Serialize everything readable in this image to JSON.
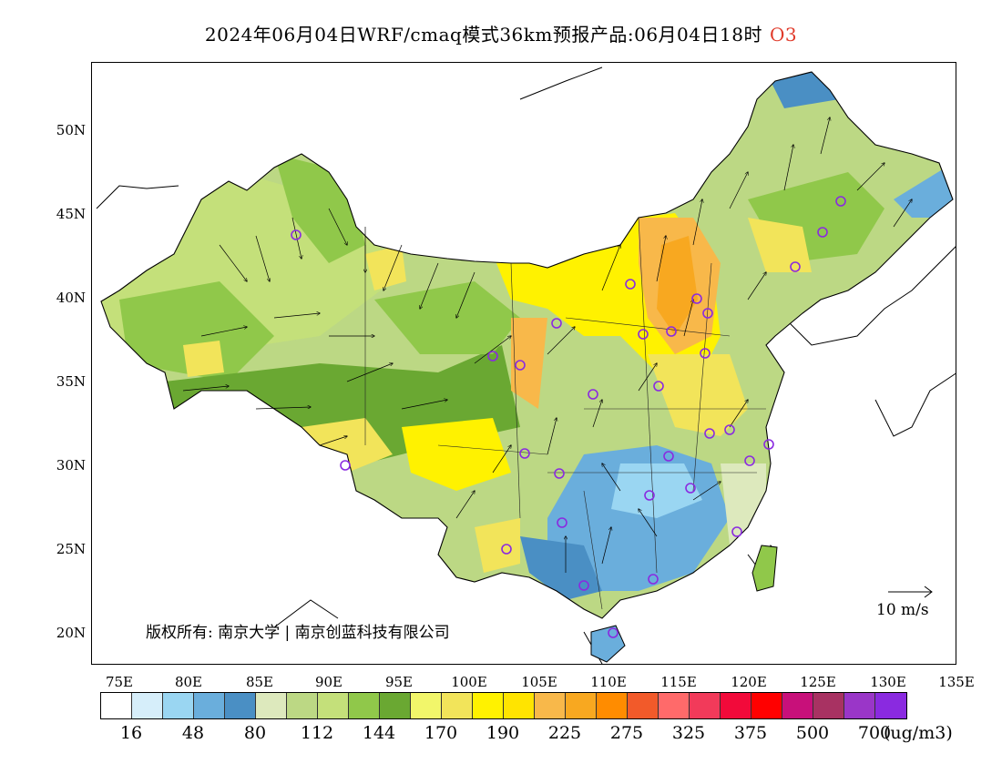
{
  "title": "2024年06月04日WRF/cmaq模式36km预报产品:06月04日18时",
  "species": "O3",
  "copyright": "版权所有: 南京大学 | 南京创蓝科技有限公司",
  "wind_scale": "10 m/s",
  "y_axis": [
    "50N",
    "45N",
    "40N",
    "35N",
    "30N",
    "25N",
    "20N"
  ],
  "x_axis": [
    "75E",
    "80E",
    "85E",
    "90E",
    "95E",
    "100E",
    "105E",
    "110E",
    "115E",
    "120E",
    "125E",
    "130E",
    "135E"
  ],
  "colorbar": {
    "colors": [
      "#ffffff",
      "#d6eefa",
      "#9ad6f2",
      "#6aaedc",
      "#4a8fc4",
      "#dde9bd",
      "#bcd884",
      "#c4e07a",
      "#90c84a",
      "#6aa832",
      "#f2f66a",
      "#f2e45a",
      "#fff200",
      "#ffe400",
      "#f8b84a",
      "#f8a820",
      "#ff8c00",
      "#f25a2a",
      "#ff6a6a",
      "#f23a5a",
      "#f20a3a",
      "#ff0000",
      "#c8107a",
      "#a83262",
      "#9a36c8",
      "#8a2ae0"
    ],
    "labels": [
      "16",
      "48",
      "80",
      "112",
      "144",
      "170",
      "190",
      "225",
      "275",
      "325",
      "375",
      "500",
      "700"
    ],
    "unit": "(ug/m3)"
  },
  "stations": 28
}
